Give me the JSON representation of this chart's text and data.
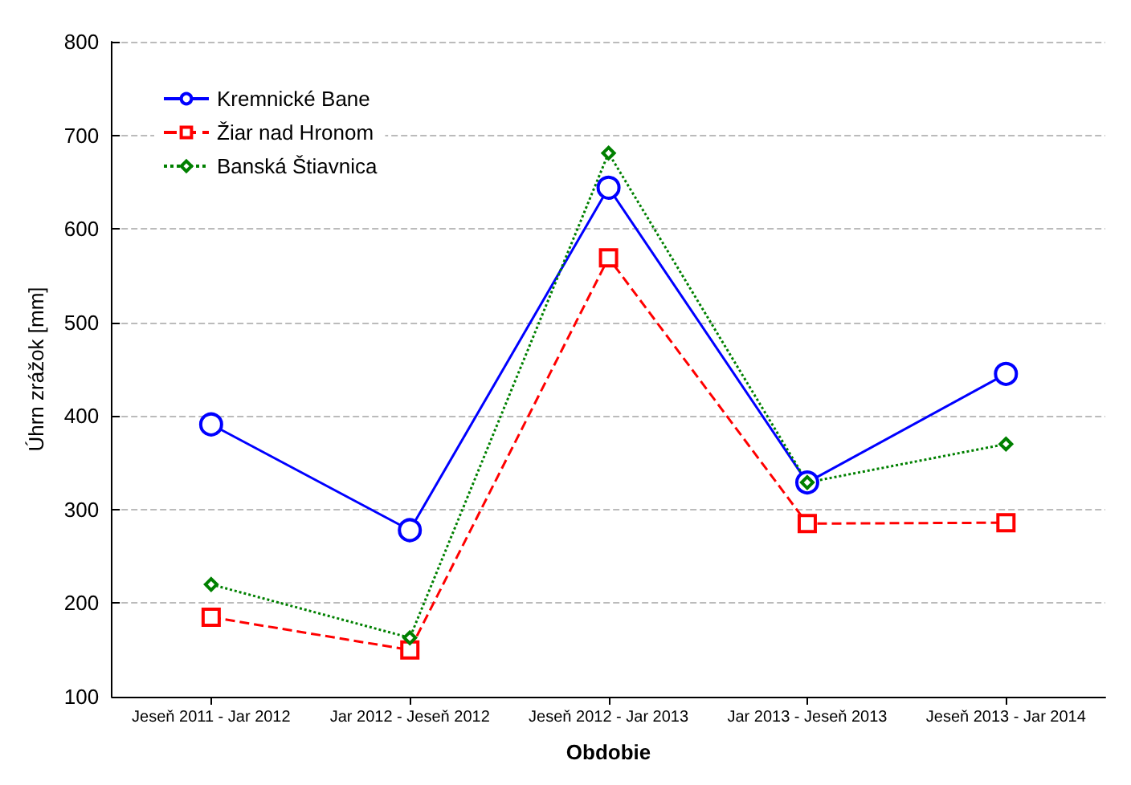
{
  "chart_data": {
    "type": "line",
    "xlabel": "Obdobie",
    "ylabel": "Úhrn zrážok [mm]",
    "categories": [
      "Jeseň 2011 - Jar 2012",
      "Jar 2012 - Jeseň 2012",
      "Jeseň 2012 - Jar 2013",
      "Jar 2013 - Jeseň 2013",
      "Jeseň 2013 - Jar 2014"
    ],
    "series": [
      {
        "name": "Kremnické Bane",
        "color": "#0000ff",
        "marker": "circle",
        "line_style": "solid",
        "values": [
          391,
          278,
          644,
          329,
          445
        ]
      },
      {
        "name": "Žiar nad Hronom",
        "color": "#ff0000",
        "marker": "square",
        "line_style": "dashed",
        "values": [
          185,
          150,
          569,
          285,
          286
        ]
      },
      {
        "name": "Banská Štiavnica",
        "color": "#008000",
        "marker": "diamond",
        "line_style": "dotted",
        "values": [
          220,
          163,
          681,
          329,
          370
        ]
      }
    ],
    "ylim": [
      100,
      800
    ],
    "yticks": [
      100,
      200,
      300,
      400,
      500,
      600,
      700,
      800
    ],
    "grid": "y",
    "legend": "top left"
  }
}
